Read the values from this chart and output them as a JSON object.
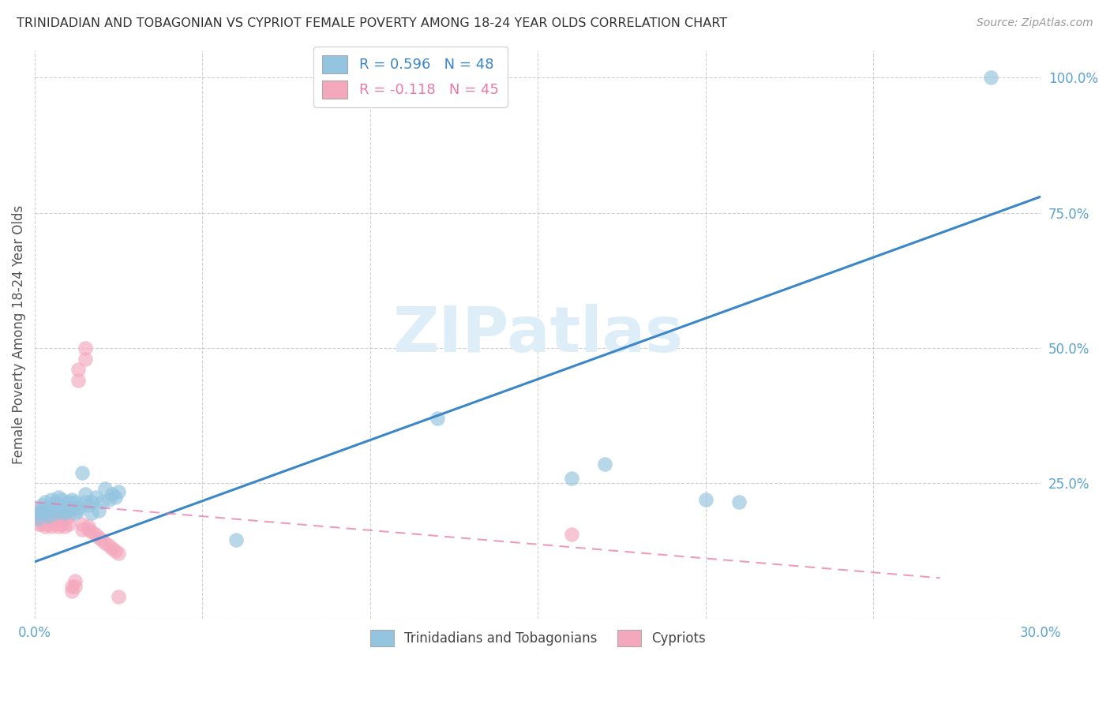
{
  "title": "TRINIDADIAN AND TOBAGONIAN VS CYPRIOT FEMALE POVERTY AMONG 18-24 YEAR OLDS CORRELATION CHART",
  "source": "Source: ZipAtlas.com",
  "ylabel": "Female Poverty Among 18-24 Year Olds",
  "watermark": "ZIPatlas",
  "legend_blue_R": "R = 0.596",
  "legend_blue_N": "N = 48",
  "legend_pink_R": "R = -0.118",
  "legend_pink_N": "N = 45",
  "legend_blue_label": "Trinidadians and Tobagonians",
  "legend_pink_label": "Cypriots",
  "xlim": [
    0.0,
    0.3
  ],
  "ylim": [
    0.0,
    1.05
  ],
  "xticks": [
    0.0,
    0.05,
    0.1,
    0.15,
    0.2,
    0.25,
    0.3
  ],
  "xticklabels": [
    "0.0%",
    "",
    "",
    "",
    "",
    "",
    "30.0%"
  ],
  "yticks": [
    0.0,
    0.25,
    0.5,
    0.75,
    1.0
  ],
  "yticklabels": [
    "",
    "25.0%",
    "50.0%",
    "75.0%",
    "100.0%"
  ],
  "blue_color": "#93c4e0",
  "pink_color": "#f4a8be",
  "blue_line_color": "#3a86c8",
  "pink_line_color": "#e87aaa",
  "axis_color": "#5ba3d0",
  "grid_color": "#cccccc",
  "title_color": "#333333",
  "source_color": "#999999",
  "watermark_color": "#ddeef8",
  "blue_x": [
    0.001,
    0.001,
    0.002,
    0.002,
    0.003,
    0.003,
    0.004,
    0.004,
    0.005,
    0.005,
    0.006,
    0.006,
    0.006,
    0.007,
    0.007,
    0.008,
    0.008,
    0.009,
    0.009,
    0.01,
    0.01,
    0.011,
    0.011,
    0.012,
    0.012,
    0.013,
    0.013,
    0.014,
    0.015,
    0.015,
    0.016,
    0.017,
    0.017,
    0.018,
    0.019,
    0.02,
    0.021,
    0.022,
    0.023,
    0.024,
    0.025,
    0.06,
    0.12,
    0.16,
    0.17,
    0.2,
    0.21,
    0.285
  ],
  "blue_y": [
    0.195,
    0.185,
    0.21,
    0.2,
    0.215,
    0.195,
    0.205,
    0.19,
    0.22,
    0.2,
    0.215,
    0.195,
    0.205,
    0.225,
    0.21,
    0.2,
    0.22,
    0.205,
    0.195,
    0.215,
    0.2,
    0.22,
    0.205,
    0.195,
    0.215,
    0.205,
    0.2,
    0.27,
    0.23,
    0.215,
    0.21,
    0.215,
    0.195,
    0.225,
    0.2,
    0.215,
    0.24,
    0.22,
    0.23,
    0.225,
    0.235,
    0.145,
    0.37,
    0.26,
    0.285,
    0.22,
    0.215,
    1.0
  ],
  "pink_x": [
    0.001,
    0.001,
    0.001,
    0.002,
    0.002,
    0.002,
    0.003,
    0.003,
    0.004,
    0.004,
    0.005,
    0.005,
    0.006,
    0.006,
    0.007,
    0.007,
    0.008,
    0.008,
    0.009,
    0.009,
    0.01,
    0.01,
    0.011,
    0.011,
    0.012,
    0.012,
    0.013,
    0.013,
    0.014,
    0.014,
    0.015,
    0.015,
    0.016,
    0.016,
    0.017,
    0.018,
    0.019,
    0.02,
    0.021,
    0.022,
    0.023,
    0.024,
    0.025,
    0.16,
    0.025
  ],
  "pink_y": [
    0.19,
    0.175,
    0.2,
    0.18,
    0.195,
    0.175,
    0.185,
    0.17,
    0.19,
    0.175,
    0.185,
    0.17,
    0.19,
    0.175,
    0.185,
    0.17,
    0.19,
    0.175,
    0.185,
    0.17,
    0.19,
    0.175,
    0.06,
    0.05,
    0.07,
    0.06,
    0.44,
    0.46,
    0.175,
    0.165,
    0.48,
    0.5,
    0.17,
    0.165,
    0.16,
    0.155,
    0.15,
    0.145,
    0.14,
    0.135,
    0.13,
    0.125,
    0.12,
    0.155,
    0.04
  ],
  "blue_trend_x": [
    0.0,
    0.3
  ],
  "blue_trend_y": [
    0.105,
    0.78
  ],
  "pink_trend_x": [
    0.0,
    0.27
  ],
  "pink_trend_y": [
    0.215,
    0.075
  ]
}
